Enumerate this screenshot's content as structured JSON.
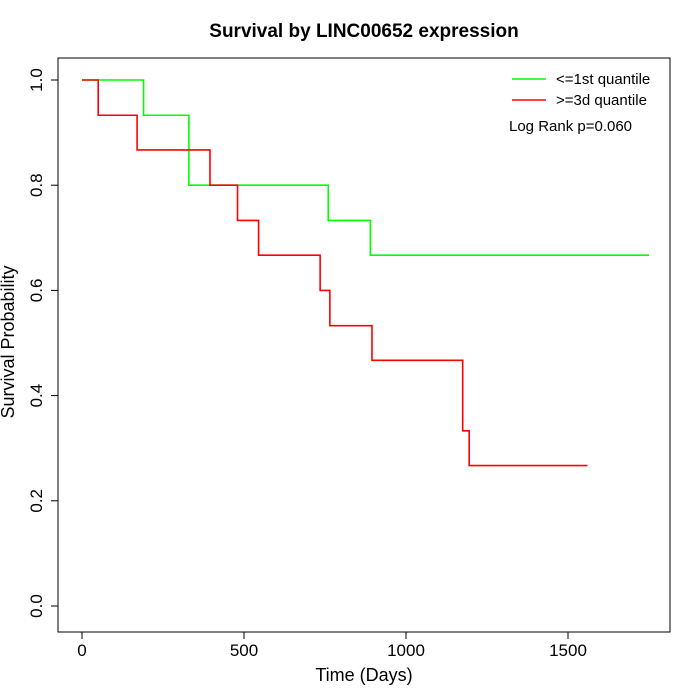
{
  "chart_data": {
    "type": "line",
    "title": "Survival by LINC00652 expression",
    "xlabel": "Time (Days)",
    "ylabel": "Survival Probability",
    "xlim": [
      0,
      1750
    ],
    "ylim": [
      0,
      1.0
    ],
    "x_ticks": [
      "0",
      "500",
      "1000",
      "1500"
    ],
    "y_ticks": [
      "0.0",
      "0.2",
      "0.4",
      "0.6",
      "0.8",
      "1.0"
    ],
    "legend_position": "top-right",
    "annotation": "Log Rank p=0.060",
    "series": [
      {
        "name": "<=1st quantile",
        "color": "#00ff00",
        "step": true,
        "x": [
          0,
          190,
          330,
          760,
          890,
          1750
        ],
        "y": [
          1.0,
          0.933,
          0.8,
          0.733,
          0.667,
          0.667
        ]
      },
      {
        "name": ">=3d quantile",
        "color": "#ff0000",
        "step": true,
        "x": [
          0,
          50,
          170,
          395,
          480,
          545,
          735,
          765,
          895,
          1175,
          1195,
          1560
        ],
        "y": [
          1.0,
          0.933,
          0.867,
          0.8,
          0.733,
          0.667,
          0.6,
          0.533,
          0.467,
          0.333,
          0.267,
          0.267
        ]
      }
    ]
  }
}
